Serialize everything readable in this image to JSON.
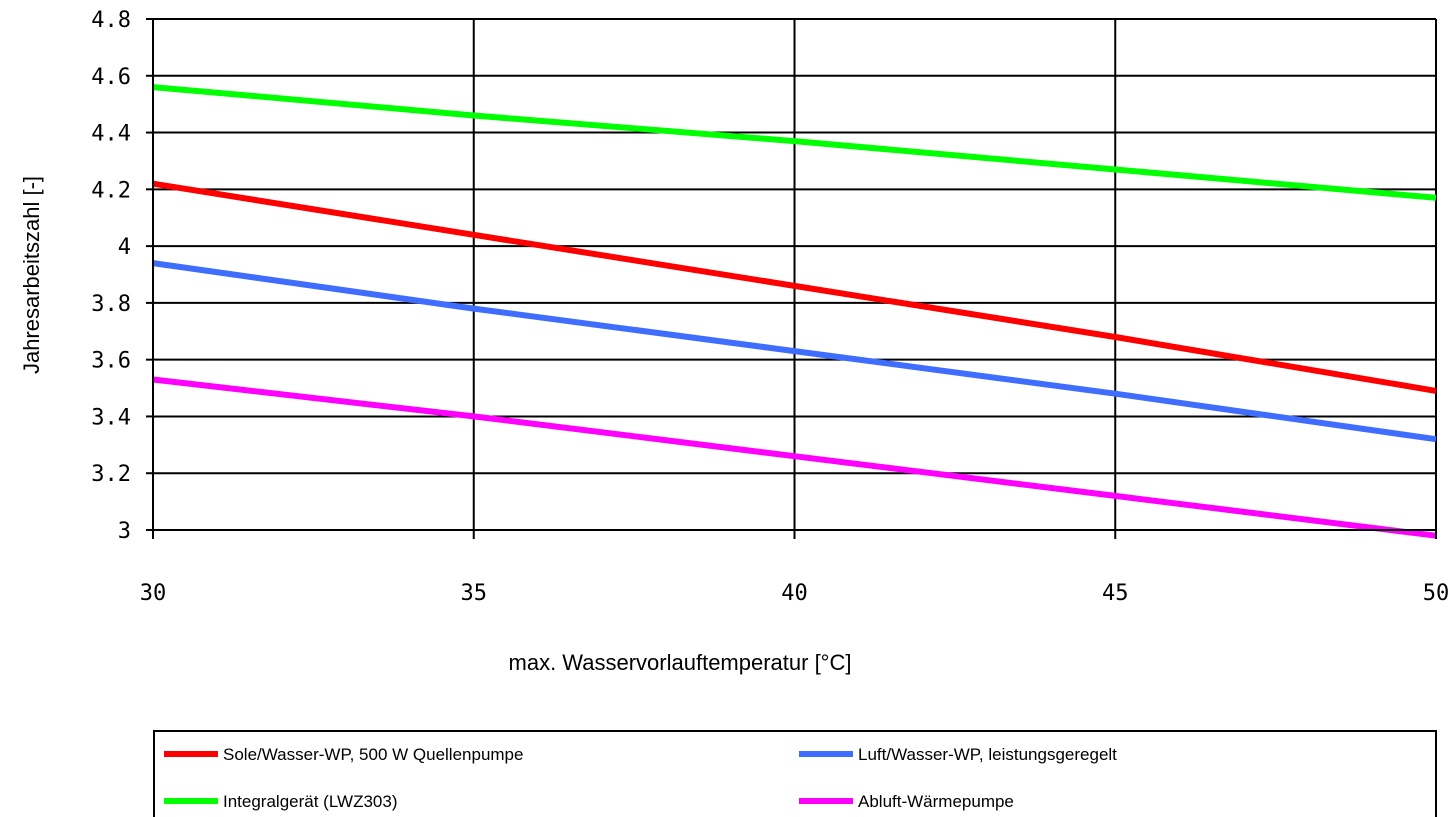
{
  "chart_data": {
    "type": "line",
    "title": "",
    "xlabel": "max. Wasservorlauftemperatur [°C]",
    "ylabel": "Jahresarbeitszahl [-]",
    "xlim": [
      30,
      50
    ],
    "ylim": [
      3,
      4.8
    ],
    "x_ticks": [
      "30",
      "35",
      "40",
      "45",
      "50"
    ],
    "y_ticks": [
      "3",
      "3.2",
      "3.4",
      "3.6",
      "3.8",
      "4",
      "4.2",
      "4.4",
      "4.6",
      "4.8"
    ],
    "x_tick_values": [
      30,
      35,
      40,
      45,
      50
    ],
    "y_tick_values": [
      3,
      3.2,
      3.4,
      3.6,
      3.8,
      4.0,
      4.2,
      4.4,
      4.6,
      4.8
    ],
    "grid": true,
    "legend_position": "bottom",
    "x": [
      30,
      35,
      40,
      45,
      50
    ],
    "series": [
      {
        "name": "Sole/Wasser-WP, 500 W Quellenpumpe",
        "color": "#ff0000",
        "values": [
          4.22,
          4.04,
          3.86,
          3.68,
          3.49
        ]
      },
      {
        "name": "Luft/Wasser-WP, leistungsgeregelt",
        "color": "#3e6dff",
        "values": [
          3.94,
          3.78,
          3.63,
          3.48,
          3.32
        ]
      },
      {
        "name": "Integralgerät (LWZ303)",
        "color": "#00ff00",
        "values": [
          4.56,
          4.46,
          4.37,
          4.27,
          4.17
        ]
      },
      {
        "name": "Abluft-Wärmepumpe",
        "color": "#ff00ff",
        "values": [
          3.53,
          3.4,
          3.26,
          3.12,
          2.98
        ]
      }
    ]
  }
}
